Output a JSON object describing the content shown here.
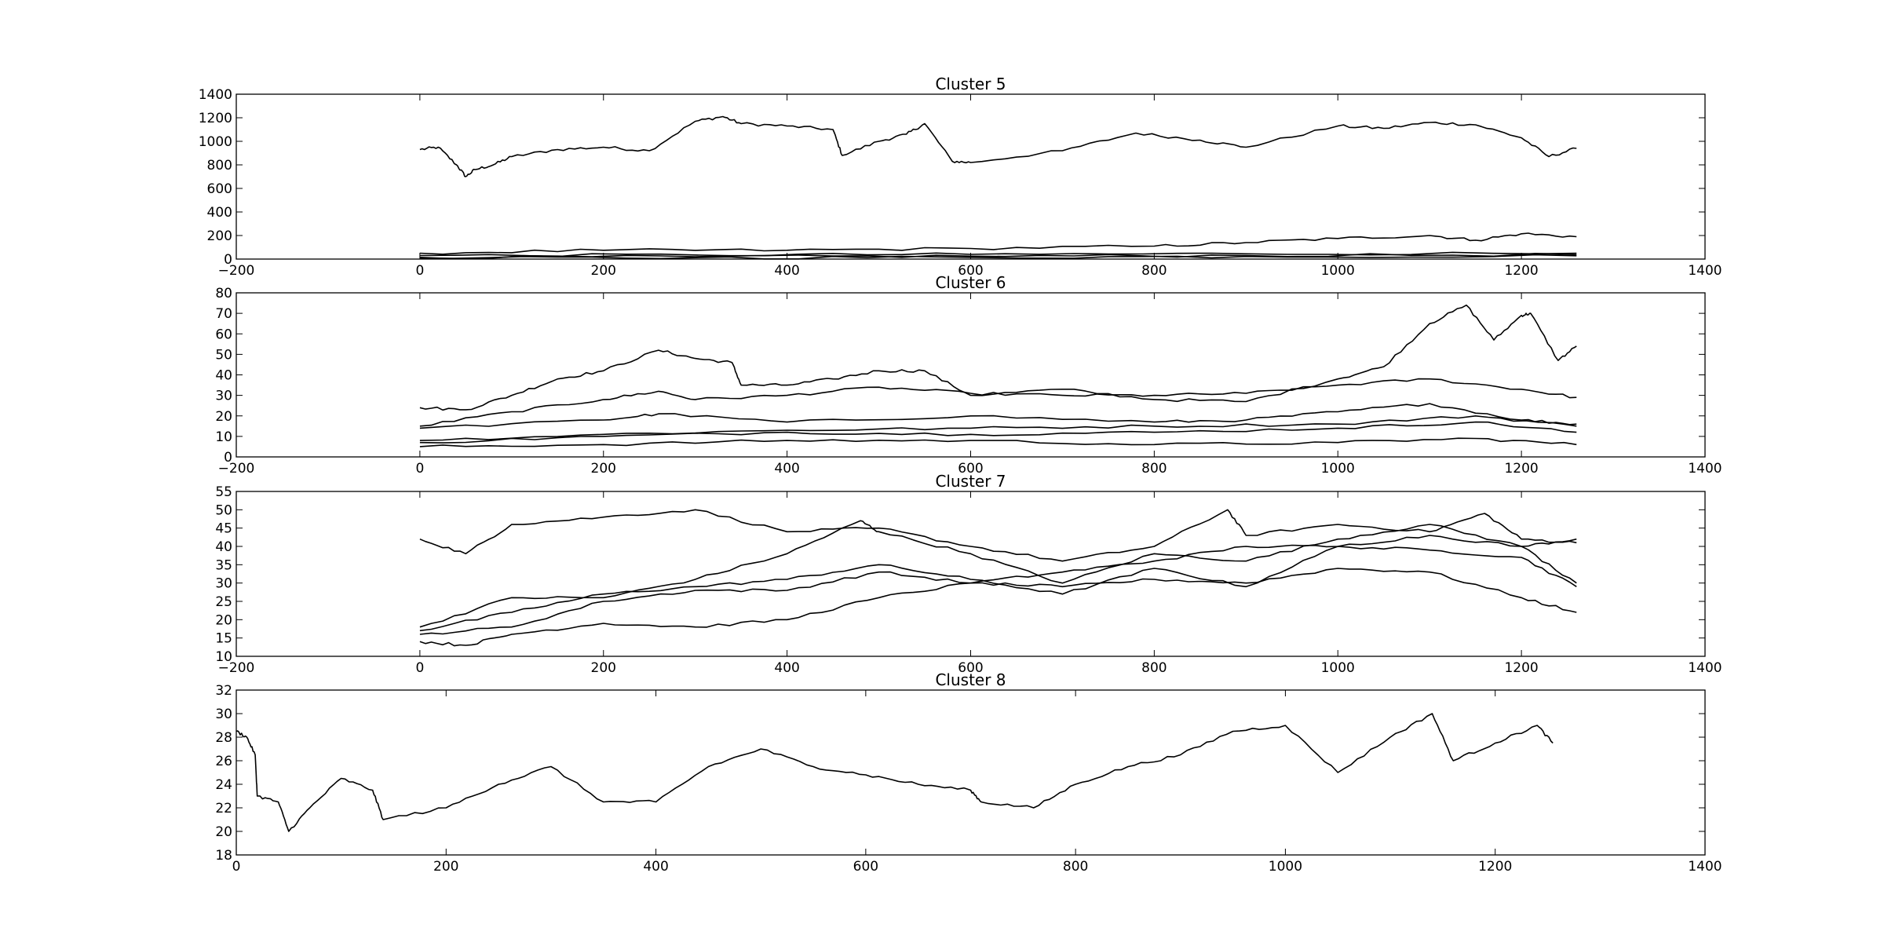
{
  "chart_data": [
    {
      "type": "line",
      "title": "Cluster 5",
      "xlim": [
        -200,
        1400
      ],
      "ylim": [
        0,
        1400
      ],
      "xticks": [
        -200,
        0,
        200,
        400,
        600,
        800,
        1000,
        1200,
        1400
      ],
      "yticks": [
        0,
        200,
        400,
        600,
        800,
        1000,
        1200,
        1400
      ],
      "series": [
        {
          "x": [
            0,
            20,
            40,
            50,
            60,
            80,
            100,
            150,
            200,
            250,
            300,
            330,
            350,
            400,
            450,
            460,
            500,
            530,
            550,
            580,
            600,
            700,
            780,
            850,
            900,
            1000,
            1050,
            1100,
            1150,
            1200,
            1230,
            1260
          ],
          "values": [
            930,
            950,
            800,
            700,
            760,
            800,
            870,
            930,
            950,
            920,
            1170,
            1210,
            1150,
            1130,
            1100,
            880,
            1000,
            1060,
            1150,
            830,
            820,
            920,
            1070,
            1010,
            950,
            1130,
            1110,
            1160,
            1140,
            1030,
            870,
            940
          ]
        },
        {
          "x": [
            0,
            200,
            400,
            600,
            800,
            900,
            1000,
            1100,
            1150,
            1200,
            1260
          ],
          "values": [
            50,
            75,
            75,
            90,
            110,
            140,
            175,
            200,
            160,
            215,
            190
          ]
        },
        {
          "x": [
            0,
            300,
            600,
            900,
            1260
          ],
          "values": [
            30,
            35,
            40,
            45,
            50
          ]
        },
        {
          "x": [
            0,
            300,
            600,
            900,
            1260
          ],
          "values": [
            15,
            20,
            25,
            30,
            38
          ]
        },
        {
          "x": [
            0,
            300,
            600,
            900,
            1260
          ],
          "values": [
            8,
            12,
            15,
            22,
            28
          ]
        }
      ]
    },
    {
      "type": "line",
      "title": "Cluster 6",
      "xlim": [
        -200,
        1400
      ],
      "ylim": [
        0,
        80
      ],
      "xticks": [
        -200,
        0,
        200,
        400,
        600,
        800,
        1000,
        1200,
        1400
      ],
      "yticks": [
        0,
        10,
        20,
        30,
        40,
        50,
        60,
        70,
        80
      ],
      "series": [
        {
          "x": [
            0,
            50,
            100,
            150,
            200,
            260,
            300,
            340,
            350,
            400,
            450,
            500,
            550,
            600,
            700,
            800,
            900,
            1000,
            1050,
            1100,
            1140,
            1170,
            1200,
            1210,
            1240,
            1260
          ],
          "values": [
            24,
            23,
            30,
            38,
            42,
            52,
            48,
            46,
            35,
            35,
            38,
            42,
            42,
            30,
            33,
            28,
            27,
            38,
            44,
            65,
            74,
            57,
            69,
            70,
            47,
            54
          ]
        },
        {
          "x": [
            0,
            100,
            200,
            260,
            300,
            400,
            500,
            600,
            700,
            800,
            900,
            1000,
            1100,
            1200,
            1260
          ],
          "values": [
            15,
            22,
            28,
            32,
            28,
            30,
            34,
            31,
            30,
            30,
            31,
            35,
            38,
            33,
            29
          ]
        },
        {
          "x": [
            0,
            200,
            260,
            400,
            600,
            800,
            900,
            1000,
            1100,
            1200,
            1260
          ],
          "values": [
            14,
            18,
            21,
            17,
            20,
            17,
            18,
            22,
            26,
            18,
            16
          ]
        },
        {
          "x": [
            0,
            200,
            400,
            600,
            800,
            1000,
            1150,
            1260
          ],
          "values": [
            8,
            11,
            13,
            14,
            15,
            16,
            20,
            15
          ]
        },
        {
          "x": [
            0,
            200,
            400,
            600,
            800,
            1000,
            1150,
            1260
          ],
          "values": [
            7,
            10,
            12,
            11,
            12,
            14,
            17,
            12
          ]
        },
        {
          "x": [
            0,
            200,
            400,
            600,
            800,
            1000,
            1150,
            1260
          ],
          "values": [
            5,
            6,
            8,
            8,
            6,
            7,
            9,
            6
          ]
        }
      ]
    },
    {
      "type": "line",
      "title": "Cluster 7",
      "xlim": [
        -200,
        1400
      ],
      "ylim": [
        10,
        55
      ],
      "xticks": [
        -200,
        0,
        200,
        400,
        600,
        800,
        1000,
        1200,
        1400
      ],
      "yticks": [
        10,
        15,
        20,
        25,
        30,
        35,
        40,
        45,
        50,
        55
      ],
      "series": [
        {
          "x": [
            0,
            50,
            100,
            200,
            300,
            400,
            500,
            600,
            700,
            800,
            880,
            900,
            1000,
            1100,
            1160,
            1200,
            1260
          ],
          "values": [
            42,
            38,
            46,
            48,
            50,
            44,
            45,
            40,
            36,
            40,
            50,
            43,
            46,
            44,
            49,
            42,
            41
          ]
        },
        {
          "x": [
            0,
            100,
            200,
            300,
            400,
            480,
            500,
            600,
            700,
            800,
            900,
            1000,
            1100,
            1200,
            1260
          ],
          "values": [
            18,
            26,
            26,
            31,
            38,
            47,
            44,
            38,
            30,
            38,
            36,
            42,
            46,
            40,
            42
          ]
        },
        {
          "x": [
            0,
            100,
            200,
            300,
            400,
            500,
            600,
            700,
            800,
            900,
            1000,
            1100,
            1200,
            1260
          ],
          "values": [
            17,
            22,
            27,
            29,
            31,
            35,
            31,
            27,
            34,
            29,
            40,
            39,
            37,
            29
          ]
        },
        {
          "x": [
            0,
            100,
            200,
            300,
            400,
            500,
            600,
            700,
            800,
            900,
            1000,
            1100,
            1200,
            1260
          ],
          "values": [
            16,
            18,
            25,
            28,
            28,
            33,
            30,
            33,
            36,
            40,
            40,
            43,
            40,
            30
          ]
        },
        {
          "x": [
            0,
            50,
            100,
            200,
            300,
            400,
            500,
            600,
            700,
            800,
            900,
            1000,
            1100,
            1200,
            1260
          ],
          "values": [
            14,
            13,
            16,
            19,
            18,
            20,
            26,
            30,
            29,
            31,
            30,
            34,
            33,
            26,
            22
          ]
        }
      ]
    },
    {
      "type": "line",
      "title": "Cluster 8",
      "xlim": [
        0,
        1400
      ],
      "ylim": [
        18,
        32
      ],
      "xticks": [
        0,
        200,
        400,
        600,
        800,
        1000,
        1200,
        1400
      ],
      "yticks": [
        18,
        20,
        22,
        24,
        26,
        28,
        30,
        32
      ],
      "series": [
        {
          "x": [
            0,
            10,
            18,
            20,
            40,
            50,
            70,
            100,
            130,
            140,
            200,
            250,
            300,
            350,
            400,
            450,
            500,
            550,
            600,
            650,
            700,
            710,
            760,
            800,
            850,
            900,
            950,
            1000,
            1050,
            1100,
            1140,
            1160,
            1200,
            1240,
            1255
          ],
          "values": [
            28.5,
            28,
            26.5,
            23,
            22.5,
            20,
            22,
            24.5,
            23.5,
            21,
            22,
            24,
            25.5,
            22.5,
            22.5,
            25.5,
            27,
            25.5,
            24.8,
            24,
            23.5,
            22.5,
            22,
            24,
            25.5,
            26.5,
            28.5,
            29,
            25,
            28,
            30,
            26,
            27.5,
            29,
            27.5
          ]
        }
      ]
    }
  ]
}
